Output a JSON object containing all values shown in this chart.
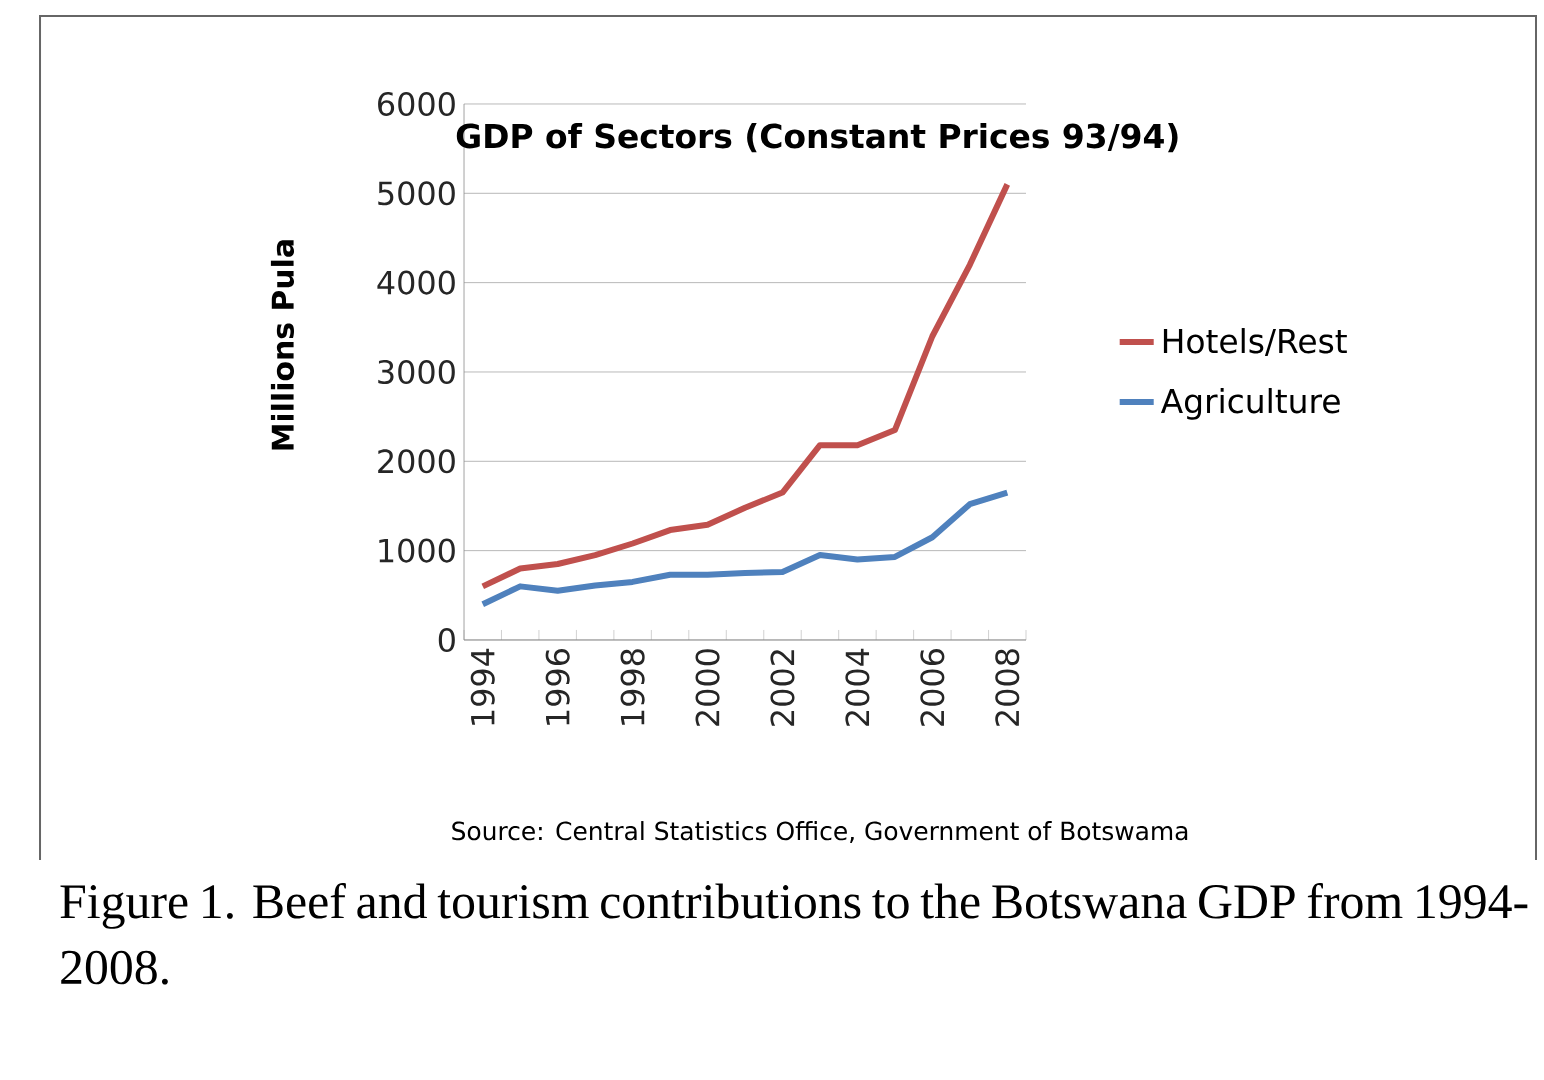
{
  "chart_data": {
    "type": "line",
    "title": "GDP of Sectors  (Constant Prices 93/94)",
    "ylabel": "Millions Pula",
    "categories": [
      "1994",
      null,
      "1996",
      null,
      "1998",
      null,
      "2000",
      null,
      "2002",
      null,
      "2004",
      null,
      "2006",
      null,
      "2008"
    ],
    "series": [
      {
        "name": "Hotels/Rest",
        "color": "#c0504d",
        "values": [
          600,
          800,
          850,
          950,
          1080,
          1230,
          1290,
          1480,
          1650,
          2180,
          2180,
          2350,
          3400,
          4200,
          5100
        ]
      },
      {
        "name": "Agriculture",
        "color": "#4f81bd",
        "values": [
          400,
          600,
          550,
          610,
          650,
          730,
          730,
          750,
          760,
          950,
          900,
          930,
          1150,
          1520,
          1650
        ]
      }
    ],
    "ylim": [
      0,
      6000
    ],
    "yticks": [
      0,
      1000,
      2000,
      3000,
      4000,
      5000,
      6000
    ],
    "grid": "y",
    "legend": "right",
    "marker": "none",
    "line_style": "solid",
    "annotations": [
      "Source: Central Statistics Office, Government of Botswama",
      "Figure 1.  Beef and tourism contributions to the Botswana GDP from 1994-2008."
    ]
  }
}
